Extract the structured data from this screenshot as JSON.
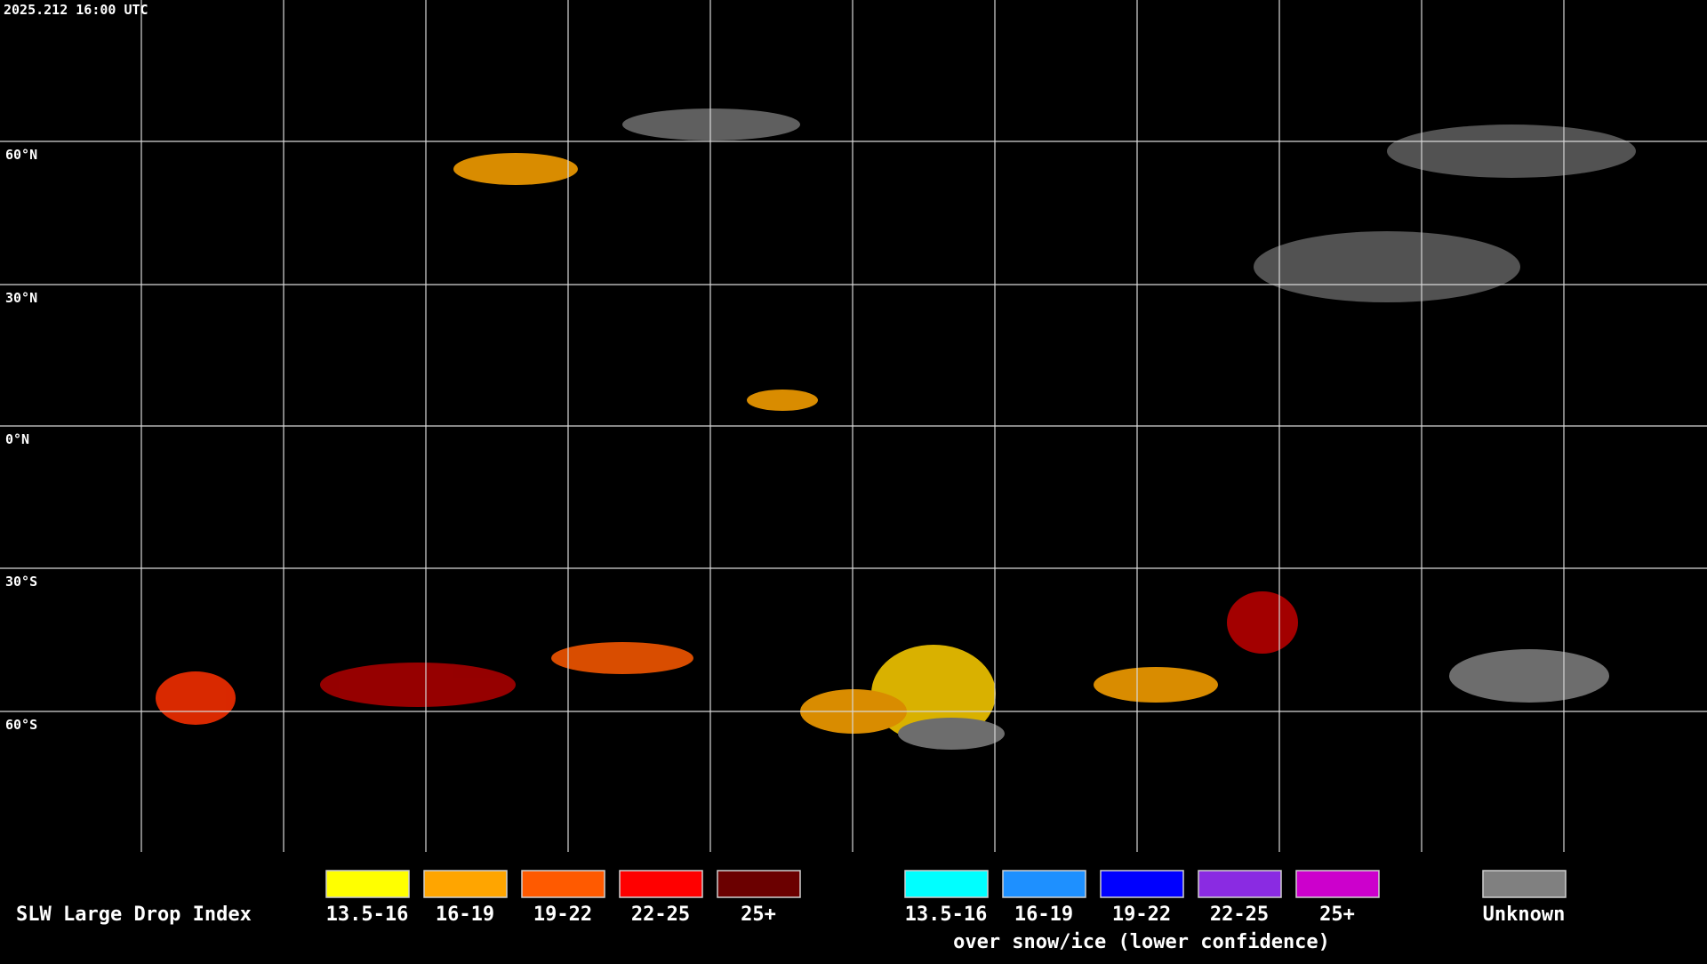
{
  "timestamp": "2025.212 16:00 UTC",
  "latitude_labels": [
    "60°N",
    "30°N",
    "0°N",
    "30°S",
    "60°S"
  ],
  "legend": {
    "title": "SLW Large Drop Index",
    "groups": [
      {
        "items": [
          {
            "label": "13.5-16",
            "color": "#ffff00"
          },
          {
            "label": "16-19",
            "color": "#ffa500"
          },
          {
            "label": "19-22",
            "color": "#ff5a00"
          },
          {
            "label": "22-25",
            "color": "#ff0000"
          },
          {
            "label": "25+",
            "color": "#6b0000"
          }
        ]
      },
      {
        "items": [
          {
            "label": "13.5-16",
            "color": "#00ffff"
          },
          {
            "label": "16-19",
            "color": "#1e90ff"
          },
          {
            "label": "19-22",
            "color": "#0000ff"
          },
          {
            "label": "22-25",
            "color": "#8a2be2"
          },
          {
            "label": "25+",
            "color": "#cc00cc"
          }
        ],
        "caption": "over snow/ice (lower confidence)"
      },
      {
        "items": [
          {
            "label": "Unknown",
            "color": "#808080"
          }
        ]
      }
    ]
  }
}
